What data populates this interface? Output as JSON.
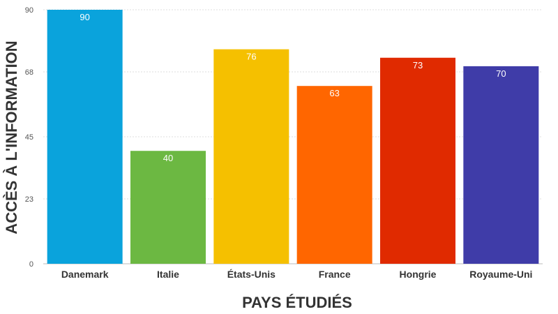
{
  "chart_data": {
    "type": "bar",
    "title": "",
    "xlabel": "PAYS ÉTUDIÉS",
    "ylabel": "ACCÈS À L'INFORMATION",
    "categories": [
      "Danemark",
      "Italie",
      "États-Unis",
      "France",
      "Hongrie",
      "Royaume-Uni"
    ],
    "values": [
      90,
      40,
      76,
      63,
      73,
      70
    ],
    "colors": [
      "#0aa3dc",
      "#6cb842",
      "#f5c000",
      "#ff6600",
      "#e02a00",
      "#3f3ca8"
    ],
    "ylim": [
      0,
      90
    ],
    "yticks": [
      0,
      23,
      45,
      68,
      90
    ],
    "grid": true,
    "legend": "none"
  }
}
